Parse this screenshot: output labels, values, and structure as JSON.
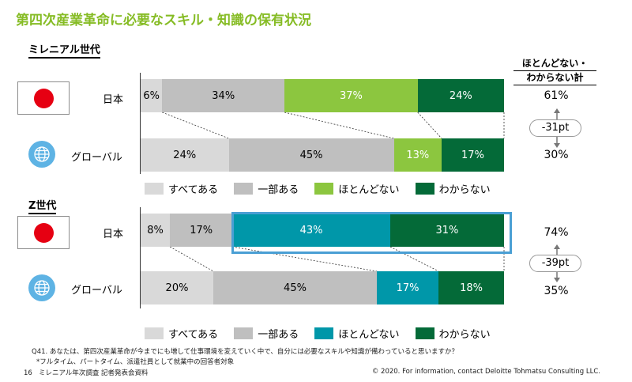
{
  "title": "第四次産業革命に必要なスキル・知識の保有状況",
  "right_header": {
    "line1": "ほとんどない・",
    "line2": "わからない計"
  },
  "colors": {
    "title": "#86BC25",
    "all": "#D9D9D9",
    "some": "#BFBFBF",
    "hardly_millennial": "#8CC63F",
    "hardly_genz": "#0097A9",
    "dont_know": "#046A38",
    "highlight": "#4A9FD4",
    "japan_flag": "#E60012",
    "globe": "#5EB3E4"
  },
  "icons": {
    "japan": "japan-flag-icon",
    "global": "globe-icon"
  },
  "chart_data": [
    {
      "type": "bar",
      "orientation": "horizontal",
      "stacked": "percent",
      "group": "ミレニアル世代",
      "categories": [
        "日本",
        "グローバル"
      ],
      "series": [
        {
          "name": "すべてある",
          "values": [
            6,
            24
          ],
          "labels": [
            "6%",
            "24%"
          ]
        },
        {
          "name": "一部ある",
          "values": [
            34,
            45
          ],
          "labels": [
            "34%",
            "45%"
          ]
        },
        {
          "name": "ほとんどない",
          "values": [
            37,
            13
          ],
          "labels": [
            "37%",
            "13%"
          ]
        },
        {
          "name": "わからない",
          "values": [
            24,
            17
          ],
          "labels": [
            "24%",
            "17%"
          ]
        }
      ],
      "totals": [
        "61%",
        "30%"
      ],
      "diff": "-31pt",
      "legend": [
        "すべてある",
        "一部ある",
        "ほとんどない",
        "わからない"
      ]
    },
    {
      "type": "bar",
      "orientation": "horizontal",
      "stacked": "percent",
      "group": "Z世代",
      "categories": [
        "日本",
        "グローバル"
      ],
      "series": [
        {
          "name": "すべてある",
          "values": [
            8,
            20
          ],
          "labels": [
            "8%",
            "20%"
          ]
        },
        {
          "name": "一部ある",
          "values": [
            17,
            45
          ],
          "labels": [
            "17%",
            "45%"
          ]
        },
        {
          "name": "ほとんどない",
          "values": [
            43,
            17
          ],
          "labels": [
            "43%",
            "17%"
          ]
        },
        {
          "name": "わからない",
          "values": [
            31,
            18
          ],
          "labels": [
            "31%",
            "18%"
          ]
        }
      ],
      "totals": [
        "74%",
        "35%"
      ],
      "diff": "-39pt",
      "legend": [
        "すべてある",
        "一部ある",
        "ほとんどない",
        "わからない"
      ]
    }
  ],
  "footnote": {
    "line1": "Q41. あなたは、第四次産業革命が今までにも増して仕事環境を変えていく中で、自分には必要なスキルや知識が備わっていると思いますか？",
    "line2": "*フルタイム、パートタイム、派遣社員として就業中の回答者対象"
  },
  "footer": {
    "page_number": "16",
    "doc_title": "ミレニアル年次調査 記者発表会資料",
    "copyright": "© 2020. For information, contact Deloitte Tohmatsu Consulting LLC."
  }
}
